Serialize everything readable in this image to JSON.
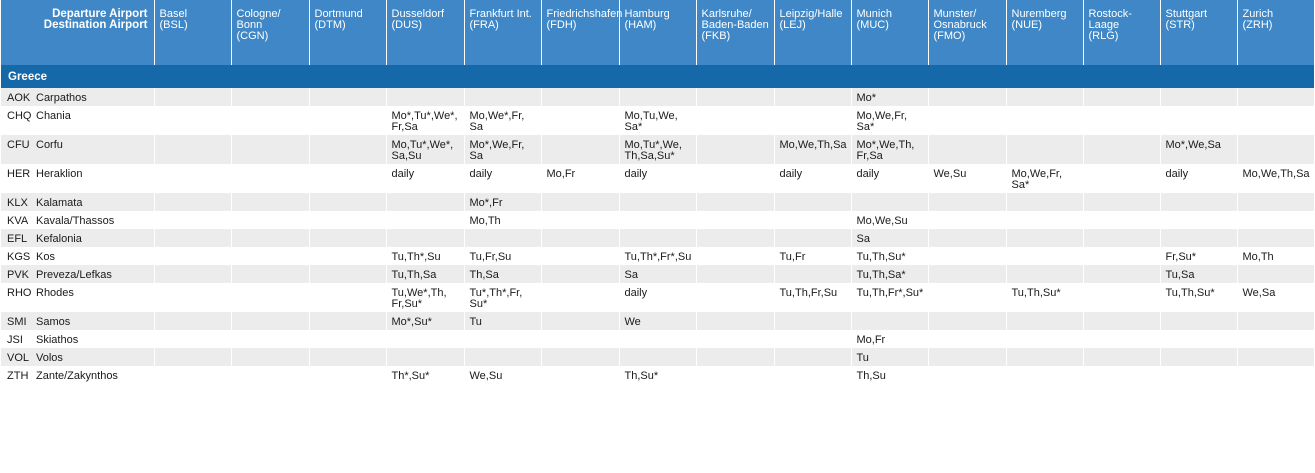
{
  "header": {
    "corner_line1": "Departure Airport",
    "corner_line2": "Destination Airport",
    "departures": [
      {
        "name": "Basel",
        "code": "(BSL)"
      },
      {
        "name": "Cologne/ Bonn",
        "code": "(CGN)"
      },
      {
        "name": "Dortmund",
        "code": "(DTM)"
      },
      {
        "name": "Dusseldorf",
        "code": "(DUS)"
      },
      {
        "name": "Frankfurt Int.",
        "code": "(FRA)"
      },
      {
        "name": "Friedrichshafen",
        "code": "(FDH)"
      },
      {
        "name": "Hamburg",
        "code": "(HAM)"
      },
      {
        "name": "Karlsruhe/ Baden-Baden",
        "code": "(FKB)"
      },
      {
        "name": "Leipzig/Halle",
        "code": "(LEJ)"
      },
      {
        "name": "Munich",
        "code": "(MUC)"
      },
      {
        "name": "Munster/ Osnabruck",
        "code": "(FMO)"
      },
      {
        "name": "Nuremberg",
        "code": "(NUE)"
      },
      {
        "name": "Rostock-Laage",
        "code": "(RLG)"
      },
      {
        "name": "Stuttgart",
        "code": "(STR)"
      },
      {
        "name": "Zurich",
        "code": "(ZRH)"
      }
    ]
  },
  "section_title": "Greece",
  "rows": [
    {
      "code": "AOK",
      "name": "Carpathos",
      "cells": [
        "",
        "",
        "",
        "",
        "",
        "",
        "",
        "",
        "",
        "Mo*",
        "",
        "",
        "",
        "",
        ""
      ]
    },
    {
      "code": "CHQ",
      "name": "Chania",
      "cells": [
        "",
        "",
        "",
        "Mo*,Tu*,We*, Fr,Sa",
        "Mo,We*,Fr, Sa",
        "",
        "Mo,Tu,We, Sa*",
        "",
        "",
        "Mo,We,Fr, Sa*",
        "",
        "",
        "",
        "",
        ""
      ]
    },
    {
      "code": "CFU",
      "name": "Corfu",
      "cells": [
        "",
        "",
        "",
        "Mo,Tu*,We*, Sa,Su",
        "Mo*,We,Fr, Sa",
        "",
        "Mo,Tu*,We, Th,Sa,Su*",
        "",
        "Mo,We,Th,Sa",
        "Mo*,We,Th, Fr,Sa",
        "",
        "",
        "",
        "Mo*,We,Sa",
        ""
      ]
    },
    {
      "code": "HER",
      "name": "Heraklion",
      "cells": [
        "",
        "",
        "",
        "daily",
        "daily",
        "Mo,Fr",
        "daily",
        "",
        "daily",
        "daily",
        "We,Su",
        "Mo,We,Fr, Sa*",
        "",
        "daily",
        "Mo,We,Th,Sa"
      ]
    },
    {
      "code": "KLX",
      "name": "Kalamata",
      "cells": [
        "",
        "",
        "",
        "",
        "Mo*,Fr",
        "",
        "",
        "",
        "",
        "",
        "",
        "",
        "",
        "",
        ""
      ]
    },
    {
      "code": "KVA",
      "name": "Kavala/Thassos",
      "cells": [
        "",
        "",
        "",
        "",
        "Mo,Th",
        "",
        "",
        "",
        "",
        "Mo,We,Su",
        "",
        "",
        "",
        "",
        ""
      ]
    },
    {
      "code": "EFL",
      "name": "Kefalonia",
      "cells": [
        "",
        "",
        "",
        "",
        "",
        "",
        "",
        "",
        "",
        "Sa",
        "",
        "",
        "",
        "",
        ""
      ]
    },
    {
      "code": "KGS",
      "name": "Kos",
      "cells": [
        "",
        "",
        "",
        "Tu,Th*,Su",
        "Tu,Fr,Su",
        "",
        "Tu,Th*,Fr*,Su",
        "",
        "Tu,Fr",
        "Tu,Th,Su*",
        "",
        "",
        "",
        "Fr,Su*",
        "Mo,Th"
      ]
    },
    {
      "code": "PVK",
      "name": "Preveza/Lefkas",
      "cells": [
        "",
        "",
        "",
        "Tu,Th,Sa",
        "Th,Sa",
        "",
        "Sa",
        "",
        "",
        "Tu,Th,Sa*",
        "",
        "",
        "",
        "Tu,Sa",
        ""
      ]
    },
    {
      "code": "RHO",
      "name": "Rhodes",
      "cells": [
        "",
        "",
        "",
        "Tu,We*,Th, Fr,Su*",
        "Tu*,Th*,Fr, Su*",
        "",
        "daily",
        "",
        "Tu,Th,Fr,Su",
        "Tu,Th,Fr*,Su*",
        "",
        "Tu,Th,Su*",
        "",
        "Tu,Th,Su*",
        "We,Sa"
      ]
    },
    {
      "code": "SMI",
      "name": "Samos",
      "cells": [
        "",
        "",
        "",
        "Mo*,Su*",
        "Tu",
        "",
        "We",
        "",
        "",
        "",
        "",
        "",
        "",
        "",
        ""
      ]
    },
    {
      "code": "JSI",
      "name": "Skiathos",
      "cells": [
        "",
        "",
        "",
        "",
        "",
        "",
        "",
        "",
        "",
        "Mo,Fr",
        "",
        "",
        "",
        "",
        ""
      ]
    },
    {
      "code": "VOL",
      "name": "Volos",
      "cells": [
        "",
        "",
        "",
        "",
        "",
        "",
        "",
        "",
        "",
        "Tu",
        "",
        "",
        "",
        "",
        ""
      ]
    },
    {
      "code": "ZTH",
      "name": "Zante/Zakynthos",
      "cells": [
        "",
        "",
        "",
        "Th*,Su*",
        "We,Su",
        "",
        "Th,Su*",
        "",
        "",
        "Th,Su",
        "",
        "",
        "",
        "",
        ""
      ]
    }
  ]
}
